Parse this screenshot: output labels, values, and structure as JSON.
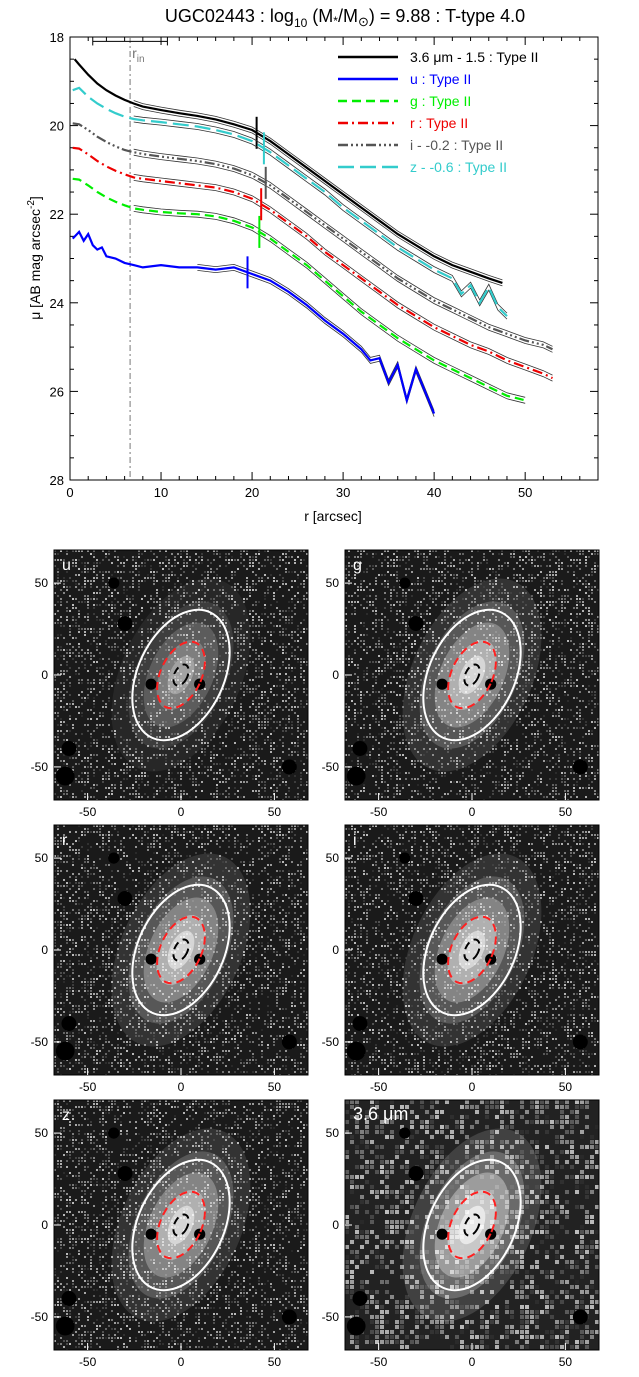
{
  "chart_data": [
    {
      "type": "line",
      "title": "UGC02443 : log10 (M*/M⊙) = 9.88 : T-type 4.0",
      "title_parts": {
        "main": "UGC02443 : log",
        "sub10": "10",
        "mid": " (M",
        "star": "*",
        "slash": "/M",
        "sun": "⊙",
        "rest": ") = 9.88 : T-type 4.0"
      },
      "xlabel": "r [arcsec]",
      "ylabel": "μ [AB mag arcsec⁻²]",
      "ylabel_parts": {
        "main": "μ [AB mag arcsec",
        "sup": "-2",
        "end": "]"
      },
      "xlim": [
        0,
        58
      ],
      "ylim": [
        28,
        18
      ],
      "xticks": [
        0,
        10,
        20,
        30,
        40,
        50
      ],
      "yticks": [
        18,
        20,
        22,
        24,
        26,
        28
      ],
      "annotation": {
        "label": "r",
        "sub": "in",
        "x": 6.6,
        "bar_x": [
          2.5,
          10.7
        ],
        "bar_y": 18.1
      },
      "legend_position": "top-right",
      "series": [
        {
          "name": "3.6 μm - 1.5 : Type II",
          "color": "#000000",
          "dash": "solid",
          "break": 20.5,
          "x": [
            0.5,
            1,
            2,
            3,
            4,
            5,
            6,
            7,
            8,
            10,
            12,
            14,
            16,
            18,
            20,
            22,
            24,
            26,
            28,
            30,
            32,
            34,
            36,
            38,
            40,
            42,
            44,
            46,
            47.5
          ],
          "y": [
            18.5,
            18.62,
            18.85,
            19.05,
            19.2,
            19.32,
            19.42,
            19.5,
            19.57,
            19.65,
            19.72,
            19.78,
            19.86,
            19.97,
            20.1,
            20.35,
            20.65,
            20.95,
            21.25,
            21.55,
            21.85,
            22.15,
            22.45,
            22.7,
            22.95,
            23.15,
            23.3,
            23.45,
            23.55
          ]
        },
        {
          "name": "u : Type II",
          "color": "#0000ff",
          "dash": "solid",
          "break": 19.5,
          "x": [
            0.3,
            1,
            1.5,
            2,
            2.5,
            3,
            3.5,
            4,
            5,
            6,
            7,
            8,
            10,
            12,
            14,
            16,
            18,
            20,
            22,
            24,
            26,
            28,
            30,
            32,
            33,
            34,
            35,
            36,
            37,
            38,
            39,
            40
          ],
          "y": [
            22.55,
            22.4,
            22.6,
            22.45,
            22.7,
            22.8,
            22.75,
            22.95,
            23.0,
            23.1,
            23.15,
            23.2,
            23.15,
            23.2,
            23.2,
            23.25,
            23.2,
            23.35,
            23.5,
            23.75,
            24.05,
            24.4,
            24.7,
            25.05,
            25.3,
            25.25,
            25.8,
            25.4,
            26.2,
            25.5,
            26.0,
            26.5
          ]
        },
        {
          "name": "g : Type II",
          "color": "#00ee00",
          "dash": "dashed",
          "break": 20.8,
          "x": [
            0.3,
            1,
            2,
            3,
            4,
            5,
            6,
            7,
            8,
            10,
            12,
            14,
            16,
            18,
            20,
            22,
            24,
            26,
            28,
            30,
            32,
            34,
            36,
            38,
            40,
            42,
            44,
            46,
            48,
            50
          ],
          "y": [
            21.2,
            21.22,
            21.35,
            21.5,
            21.62,
            21.72,
            21.8,
            21.87,
            21.9,
            21.95,
            21.98,
            22.0,
            22.05,
            22.15,
            22.3,
            22.55,
            22.85,
            23.15,
            23.5,
            23.85,
            24.2,
            24.5,
            24.8,
            25.05,
            25.3,
            25.5,
            25.7,
            25.9,
            26.1,
            26.2
          ]
        },
        {
          "name": "r : Type II",
          "color": "#ee0000",
          "dash": "dashdot",
          "break": 21.0,
          "x": [
            0.3,
            1,
            2,
            3,
            4,
            5,
            6,
            7,
            8,
            10,
            12,
            14,
            16,
            18,
            20,
            22,
            24,
            26,
            28,
            30,
            32,
            34,
            36,
            38,
            40,
            42,
            44,
            46,
            48,
            50,
            52,
            53
          ],
          "y": [
            20.5,
            20.52,
            20.65,
            20.8,
            20.92,
            21.02,
            21.1,
            21.17,
            21.2,
            21.25,
            21.3,
            21.35,
            21.4,
            21.5,
            21.65,
            21.9,
            22.2,
            22.5,
            22.85,
            23.15,
            23.45,
            23.75,
            24.05,
            24.3,
            24.55,
            24.75,
            24.95,
            25.1,
            25.3,
            25.45,
            25.6,
            25.7
          ]
        },
        {
          "name": "i - -0.2 : Type II",
          "color": "#555555",
          "dash": "dashdotdotdot",
          "break": 21.5,
          "x": [
            0.3,
            1,
            2,
            3,
            4,
            5,
            6,
            7,
            8,
            10,
            12,
            14,
            16,
            18,
            20,
            22,
            24,
            26,
            28,
            30,
            32,
            34,
            36,
            38,
            40,
            42,
            44,
            46,
            48,
            50,
            52,
            53
          ],
          "y": [
            19.95,
            19.97,
            20.1,
            20.25,
            20.37,
            20.47,
            20.55,
            20.6,
            20.64,
            20.7,
            20.75,
            20.8,
            20.87,
            20.97,
            21.12,
            21.35,
            21.65,
            21.95,
            22.25,
            22.55,
            22.85,
            23.15,
            23.45,
            23.7,
            23.95,
            24.15,
            24.35,
            24.55,
            24.7,
            24.85,
            24.95,
            25.05
          ]
        },
        {
          "name": "z - -0.6 : Type II",
          "color": "#33cccc",
          "dash": "longdash",
          "break": 21.3,
          "x": [
            0.3,
            1,
            2,
            3,
            4,
            5,
            6,
            7,
            8,
            10,
            12,
            14,
            16,
            18,
            20,
            22,
            24,
            26,
            28,
            30,
            32,
            34,
            36,
            38,
            40,
            42,
            43,
            44,
            45,
            46,
            47,
            48
          ],
          "y": [
            19.2,
            19.15,
            19.35,
            19.5,
            19.62,
            19.72,
            19.8,
            19.85,
            19.88,
            19.92,
            19.97,
            20.02,
            20.1,
            20.2,
            20.35,
            20.6,
            20.9,
            21.2,
            21.5,
            21.85,
            22.15,
            22.45,
            22.75,
            23.0,
            23.25,
            23.45,
            23.8,
            23.6,
            24.0,
            23.65,
            24.1,
            24.3
          ]
        }
      ]
    },
    {
      "type": "heatmap",
      "panels": [
        {
          "label": "u",
          "band": "u"
        },
        {
          "label": "g",
          "band": "g"
        },
        {
          "label": "r",
          "band": "r"
        },
        {
          "label": "i",
          "band": "i"
        },
        {
          "label": "z",
          "band": "z"
        },
        {
          "label": "3.6 μm",
          "band": "irac"
        }
      ],
      "xlim": [
        -68,
        68
      ],
      "ylim": [
        -68,
        68
      ],
      "xticks": [
        -50,
        0,
        50
      ],
      "yticks": [
        50,
        0,
        -50
      ],
      "ellipses": {
        "outer": {
          "color": "#ffffff",
          "dash": "solid",
          "semi_major": 37,
          "semi_minor": 23,
          "angle_deg": -25
        },
        "middle": {
          "color": "#ff2020",
          "dash": "dashed",
          "semi_major": 19,
          "semi_minor": 11,
          "angle_deg": -25
        },
        "inner": {
          "color": "#000000",
          "dash": "dashed",
          "semi_major": 6,
          "semi_minor": 3.5,
          "angle_deg": -25
        }
      }
    }
  ]
}
